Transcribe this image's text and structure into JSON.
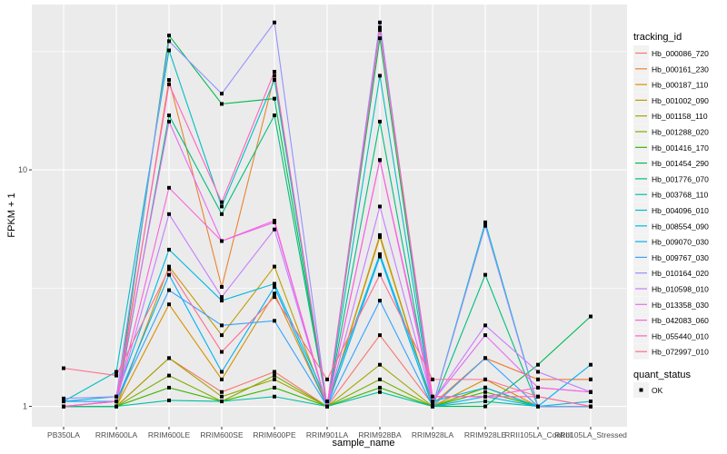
{
  "chart_data": {
    "type": "line",
    "title": "",
    "xlabel": "sample_name",
    "ylabel": "FPKM + 1",
    "yscale": "log10",
    "ylim": [
      0.82,
      50
    ],
    "yticks": [
      1,
      10
    ],
    "ytick_labels": [
      "1",
      "10"
    ],
    "grid": true,
    "categories": [
      "PB350LA",
      "RRIM600LA",
      "RRIM600LE",
      "RRIM600SE",
      "RRIM600PE",
      "RRIM901LA",
      "RRIM928BA",
      "RRIM928LA",
      "RRIM928LE",
      "RRII105LA_Control",
      "RRII105LA_Stressed"
    ],
    "legend": {
      "title": "tracking_id",
      "placement": "right"
    },
    "legend2": {
      "title": "quant_status",
      "items": [
        "OK"
      ]
    },
    "series": [
      {
        "name": "Hb_000086_720",
        "color": "#F8766D",
        "values": [
          1.0,
          1.0,
          1.6,
          1.15,
          1.4,
          1.0,
          2.0,
          1.02,
          1.6,
          1.3,
          1.3
        ]
      },
      {
        "name": "Hb_000161_230",
        "color": "#EA8331",
        "values": [
          1.0,
          1.0,
          24,
          3.2,
          25,
          1.0,
          40,
          1.02,
          1.6,
          1.3,
          1.3
        ]
      },
      {
        "name": "Hb_000187_110",
        "color": "#D89000",
        "values": [
          1.0,
          1.0,
          2.7,
          1.3,
          3.0,
          1.0,
          5.2,
          1.0,
          1.3,
          1.0,
          1.0
        ]
      },
      {
        "name": "Hb_001002_090",
        "color": "#C09B00",
        "values": [
          1.0,
          1.0,
          3.9,
          2.0,
          3.9,
          1.0,
          5.3,
          1.0,
          1.2,
          1.0,
          1.0
        ]
      },
      {
        "name": "Hb_001158_110",
        "color": "#A3A500",
        "values": [
          1.0,
          1.0,
          1.6,
          1.1,
          1.3,
          1.0,
          1.5,
          1.0,
          1.2,
          1.0,
          1.0
        ]
      },
      {
        "name": "Hb_001288_020",
        "color": "#7CAE00",
        "values": [
          1.0,
          1.0,
          1.35,
          1.05,
          1.35,
          1.0,
          1.3,
          1.0,
          1.2,
          1.0,
          1.0
        ]
      },
      {
        "name": "Hb_001416_170",
        "color": "#39B600",
        "values": [
          1.0,
          1.0,
          1.2,
          1.05,
          1.2,
          1.0,
          1.2,
          1.0,
          1.15,
          1.0,
          1.0
        ]
      },
      {
        "name": "Hb_001454_290",
        "color": "#00BB4E",
        "values": [
          1.0,
          1.0,
          37,
          19,
          20,
          1.0,
          36,
          1.0,
          1.0,
          1.5,
          2.4
        ]
      },
      {
        "name": "Hb_001776_070",
        "color": "#00BF7D",
        "values": [
          1.0,
          1.0,
          17,
          6.5,
          17,
          1.0,
          16,
          1.0,
          3.6,
          1.0,
          1.0
        ]
      },
      {
        "name": "Hb_003768_110",
        "color": "#00C1A3",
        "values": [
          1.0,
          1.0,
          1.06,
          1.05,
          1.1,
          1.0,
          1.15,
          1.0,
          1.05,
          1.0,
          1.0
        ]
      },
      {
        "name": "Hb_004096_010",
        "color": "#00BFC4",
        "values": [
          1.05,
          1.4,
          32,
          7,
          24,
          1.0,
          25,
          1.0,
          6,
          1.0,
          1.0
        ]
      },
      {
        "name": "Hb_008554_090",
        "color": "#00BAE0",
        "values": [
          1.05,
          1.1,
          4.6,
          2.8,
          3.3,
          1.05,
          4.4,
          1.05,
          1.2,
          1.0,
          1.05
        ]
      },
      {
        "name": "Hb_009070_030",
        "color": "#00B0F6",
        "values": [
          1.05,
          1.05,
          3.6,
          1.4,
          3.2,
          1.0,
          4.3,
          1.0,
          1.1,
          1.0,
          1.5
        ]
      },
      {
        "name": "Hb_009767_030",
        "color": "#35A2FF",
        "values": [
          1.05,
          1.05,
          3.1,
          2.2,
          2.3,
          1.0,
          2.8,
          1.0,
          1.6,
          1.0,
          1.0
        ]
      },
      {
        "name": "Hb_010164_020",
        "color": "#9590FF",
        "values": [
          1.08,
          1.1,
          35,
          21,
          42,
          1.0,
          42,
          1.0,
          5.8,
          1.0,
          1.0
        ]
      },
      {
        "name": "Hb_010598_010",
        "color": "#C77CFF",
        "values": [
          1.0,
          1.05,
          6.5,
          2.9,
          5.6,
          1.0,
          7,
          1.05,
          2.2,
          1.4,
          1.15
        ]
      },
      {
        "name": "Hb_013358_030",
        "color": "#E76BF3",
        "values": [
          1.0,
          1.05,
          16,
          5.0,
          6,
          1.0,
          11,
          1.05,
          2.0,
          1.2,
          1.15
        ]
      },
      {
        "name": "Hb_042083_060",
        "color": "#FA62DB",
        "values": [
          1.0,
          1.05,
          8.4,
          5.0,
          6.1,
          1.0,
          11,
          1.1,
          1.1,
          1.2,
          1.15
        ]
      },
      {
        "name": "Hb_055440_010",
        "color": "#FF62BC",
        "values": [
          1.0,
          1.05,
          23,
          7.3,
          26,
          1.0,
          39,
          1.1,
          1.1,
          1.1,
          1.0
        ]
      },
      {
        "name": "Hb_072997_010",
        "color": "#FF6C91",
        "values": [
          1.45,
          1.35,
          3.8,
          1.7,
          2.9,
          1.3,
          3.6,
          1.3,
          1.3,
          1.1,
          1.0
        ]
      }
    ]
  }
}
